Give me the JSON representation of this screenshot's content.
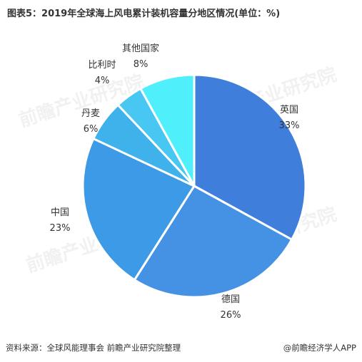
{
  "title": "图表5：2019年全球海上风电累计装机容量分地区情况(单位：%)",
  "chart_data": {
    "type": "pie",
    "title": "图表5：2019年全球海上风电累计装机容量分地区情况(单位：%)",
    "unit": "%",
    "start_angle_deg": 0,
    "direction": "clockwise",
    "slices": [
      {
        "label": "英国",
        "value": 33,
        "value_label": "33%",
        "color": "#3f7fdb"
      },
      {
        "label": "德国",
        "value": 26,
        "value_label": "26%",
        "color": "#4592e4"
      },
      {
        "label": "中国",
        "value": 23,
        "value_label": "23%",
        "color": "#3d9ae6"
      },
      {
        "label": "丹麦",
        "value": 6,
        "value_label": "6%",
        "color": "#3fb2ec"
      },
      {
        "label": "比利时",
        "value": 4,
        "value_label": "4%",
        "color": "#47c7f2"
      },
      {
        "label": "其他国家",
        "value": 8,
        "value_label": "8%",
        "color": "#4ff0fb"
      }
    ]
  },
  "watermark_text": "前瞻产业研究院",
  "footer": {
    "source": "资料来源：全球风能理事会 前瞻产业研究院整理",
    "brand": "@前瞻经济学人APP"
  }
}
